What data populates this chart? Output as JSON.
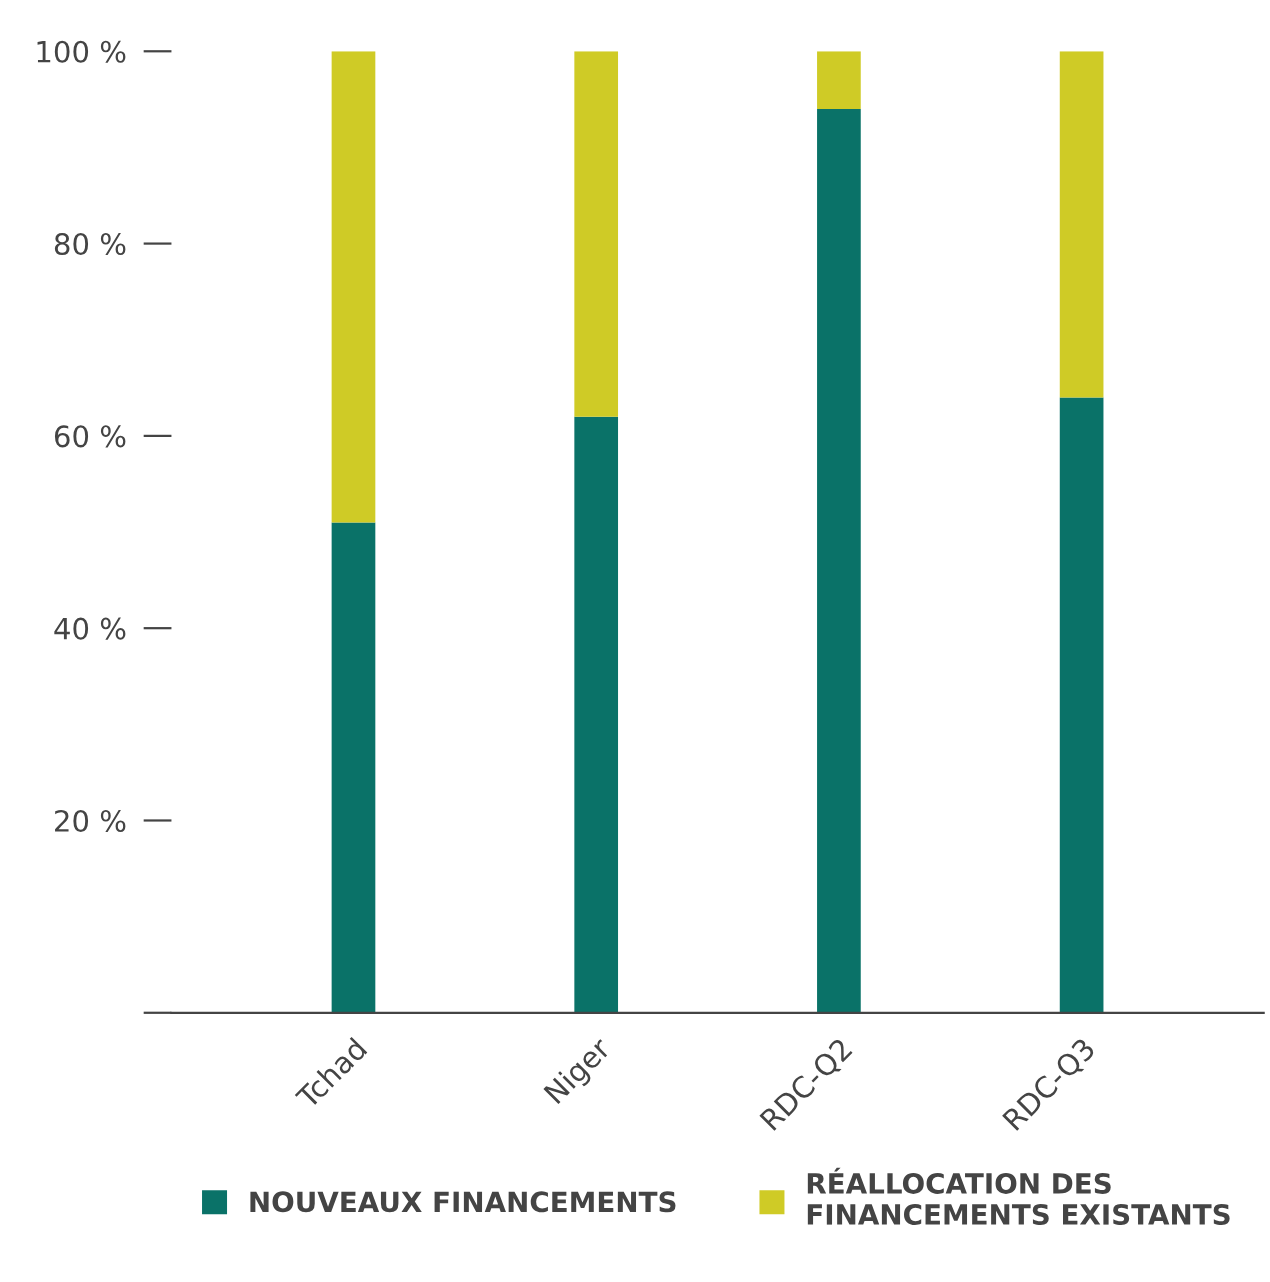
{
  "chart_data": {
    "type": "bar",
    "stacked": true,
    "categories": [
      "Tchad",
      "Niger",
      "RDC-Q2",
      "RDC-Q3"
    ],
    "series": [
      {
        "name": "NOUVEAUX FINANCEMENTS",
        "color": "#0a7268",
        "values": [
          51,
          62,
          94,
          64
        ]
      },
      {
        "name": "RÉALLOCATION DES\nFINANCEMENTS EXISTANTS",
        "color": "#cfcb26",
        "values": [
          49,
          38,
          6,
          36
        ]
      }
    ],
    "ylim": [
      0,
      100
    ],
    "yticks": [
      {
        "value": 0,
        "label": null
      },
      {
        "value": 20,
        "label": "20 %"
      },
      {
        "value": 40,
        "label": "40 %"
      },
      {
        "value": 60,
        "label": "60 %"
      },
      {
        "value": 80,
        "label": "80 %"
      },
      {
        "value": 100,
        "label": "100 %"
      }
    ],
    "grid": false,
    "legend": "bottom"
  }
}
